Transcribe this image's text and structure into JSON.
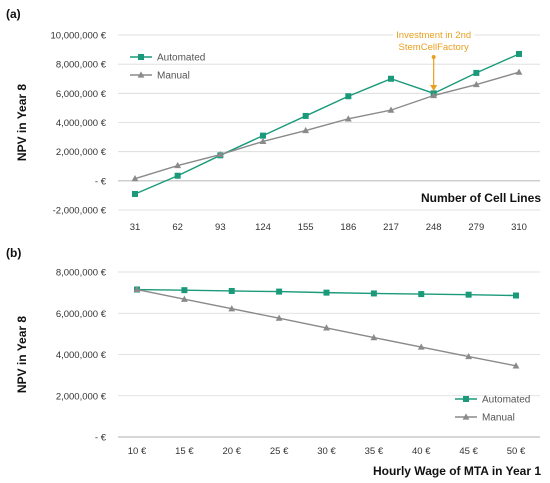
{
  "colors": {
    "automated": "#1a9a7a",
    "manual": "#8a8a8a",
    "annotation": "#e8a020",
    "grid": "#d9d9d9",
    "axis": "#bfbfbf"
  },
  "chart_data": [
    {
      "type": "line",
      "panel_label": "(a)",
      "title": "",
      "xlabel": "Number of Cell Lines",
      "ylabel": "NPV in Year 8",
      "categories": [
        "31",
        "62",
        "93",
        "124",
        "155",
        "186",
        "217",
        "248",
        "279",
        "310"
      ],
      "y_ticks": [
        "-2,000,000 €",
        "-  €",
        "2,000,000 €",
        "4,000,000 €",
        "6,000,000 €",
        "8,000,000 €",
        "10,000,000 €"
      ],
      "ylim": [
        -2000000,
        10000000
      ],
      "grid": true,
      "legend": "top-left",
      "series": [
        {
          "name": "Automated",
          "values": [
            -900000,
            350000,
            1750000,
            3100000,
            4450000,
            5800000,
            7000000,
            6000000,
            7400000,
            8700000
          ]
        },
        {
          "name": "Manual",
          "values": [
            150000,
            1050000,
            1800000,
            2700000,
            3450000,
            4250000,
            4850000,
            5850000,
            6600000,
            7450000
          ]
        }
      ],
      "annotation": {
        "text": [
          "Investment in 2nd",
          "StemCellFactory"
        ],
        "category": "248"
      }
    },
    {
      "type": "line",
      "panel_label": "(b)",
      "title": "",
      "xlabel": "Hourly Wage of MTA in Year 1",
      "ylabel": "NPV in Year 8",
      "categories": [
        "10 €",
        "15 €",
        "20 €",
        "25 €",
        "30 €",
        "35 €",
        "40 €",
        "45 €",
        "50 €"
      ],
      "y_ticks": [
        "-  €",
        "2,000,000 €",
        "4,000,000 €",
        "6,000,000 €",
        "8,000,000 €"
      ],
      "ylim": [
        0,
        8000000
      ],
      "grid": true,
      "legend": "bottom-right",
      "series": [
        {
          "name": "Automated",
          "values": [
            7150000,
            7120000,
            7080000,
            7050000,
            7000000,
            6960000,
            6930000,
            6900000,
            6860000
          ]
        },
        {
          "name": "Manual",
          "values": [
            7150000,
            6680000,
            6220000,
            5760000,
            5290000,
            4820000,
            4360000,
            3900000,
            3450000
          ]
        }
      ]
    }
  ]
}
